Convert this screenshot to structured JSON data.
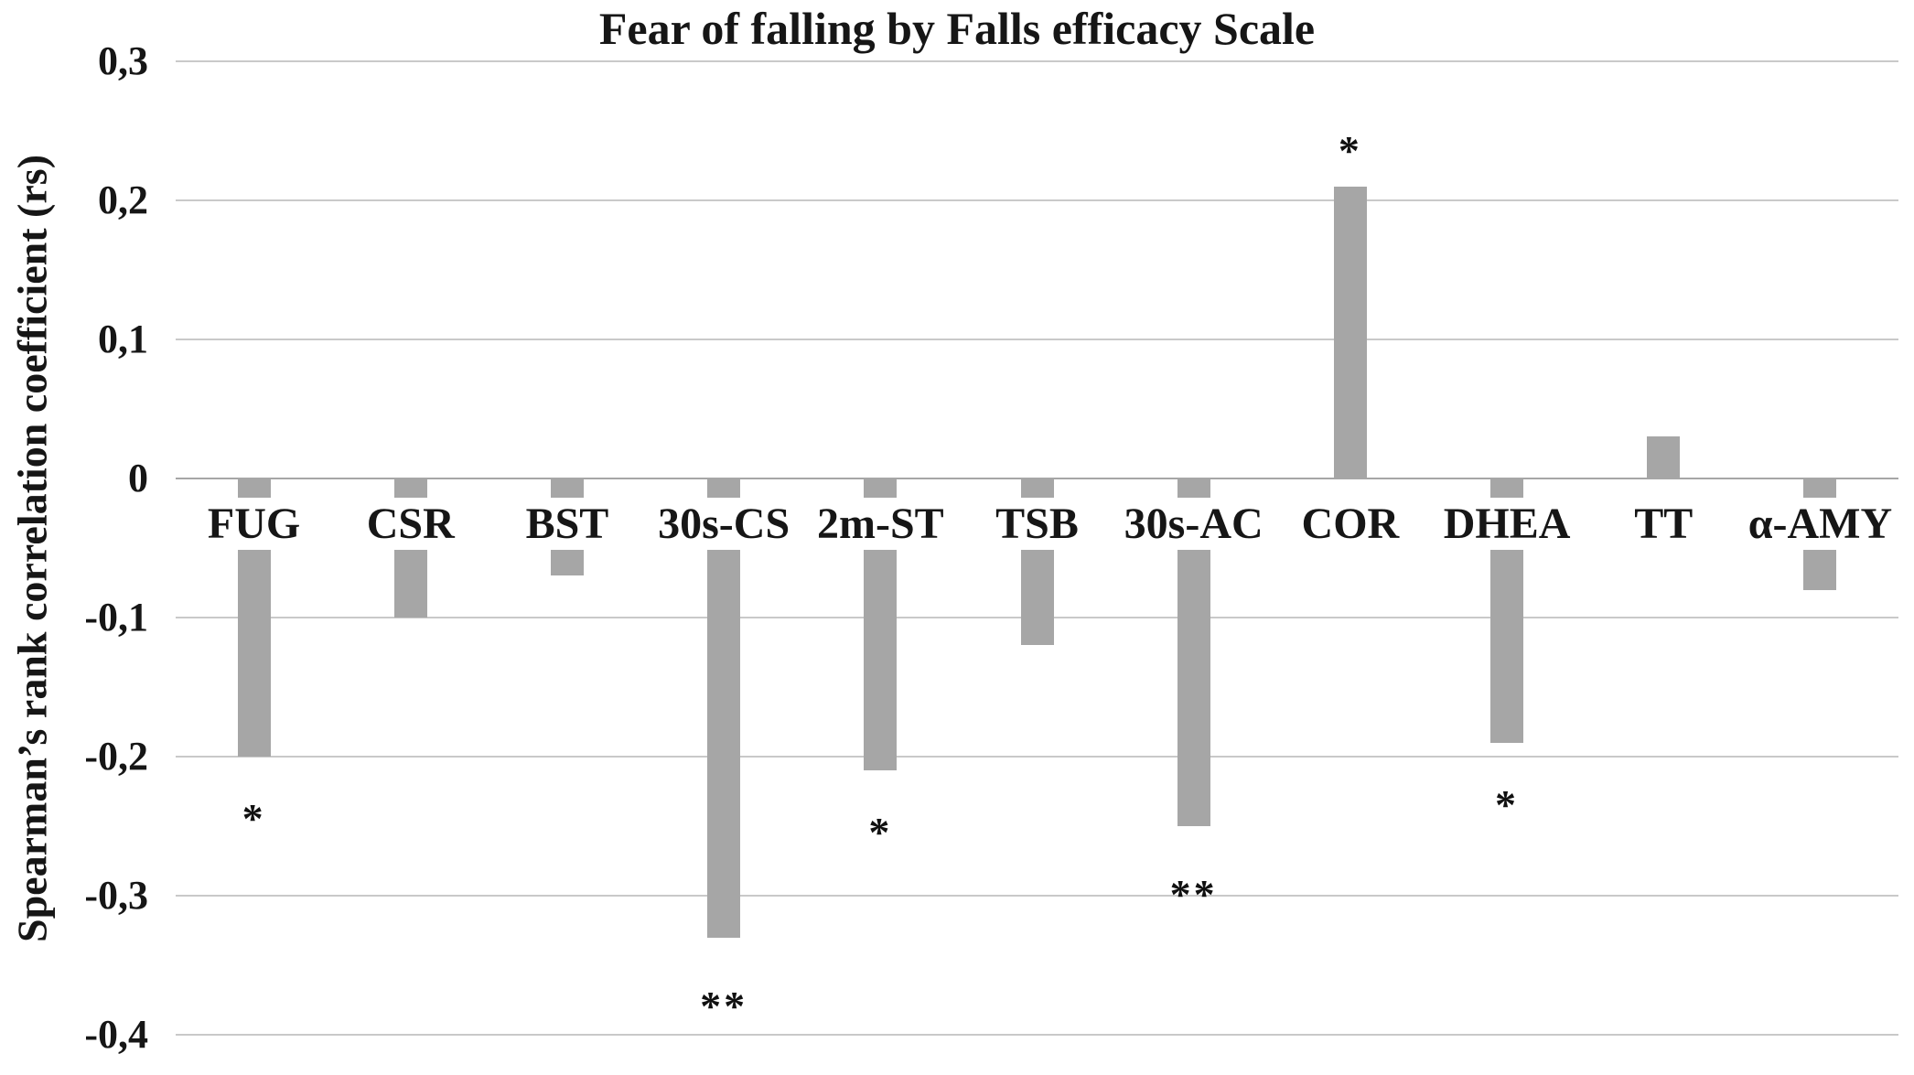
{
  "chart_data": {
    "type": "bar",
    "title": "Fear of falling by Falls efficacy Scale",
    "ylabel": "Spearman’s rank correlation coefficient (rs)",
    "xlabel": "",
    "categories": [
      "FUG",
      "CSR",
      "BST",
      "30s-CS",
      "2m-ST",
      "TSB",
      "30s-AC",
      "COR",
      "DHEA",
      "TT",
      "α-AMY"
    ],
    "values": [
      -0.2,
      -0.1,
      -0.07,
      -0.33,
      -0.21,
      -0.12,
      -0.25,
      0.21,
      -0.19,
      0.03,
      -0.08
    ],
    "significance": [
      {
        "category": "FUG",
        "label": "*",
        "value": -0.24
      },
      {
        "category": "30s-CS",
        "label": "**",
        "value": -0.375
      },
      {
        "category": "2m-ST",
        "label": "*",
        "value": -0.25
      },
      {
        "category": "30s-AC",
        "label": "**",
        "value": -0.295
      },
      {
        "category": "COR",
        "label": "*",
        "value": 0.24
      },
      {
        "category": "DHEA",
        "label": "*",
        "value": -0.23
      }
    ],
    "yticks": [
      0.3,
      0.2,
      0.1,
      0,
      -0.1,
      -0.2,
      -0.3,
      -0.4
    ],
    "ytick_labels": [
      "0,3",
      "0,2",
      "0,1",
      "0",
      "-0,1",
      "-0,2",
      "-0,3",
      "-0,4"
    ],
    "ylim": [
      -0.4,
      0.3
    ],
    "grid": true,
    "legend": false,
    "bar_color": "#a6a6a6",
    "gridline_color": "#c9c9c9",
    "zero_line_color": "#a6a6a6",
    "text_color": "#161616"
  }
}
